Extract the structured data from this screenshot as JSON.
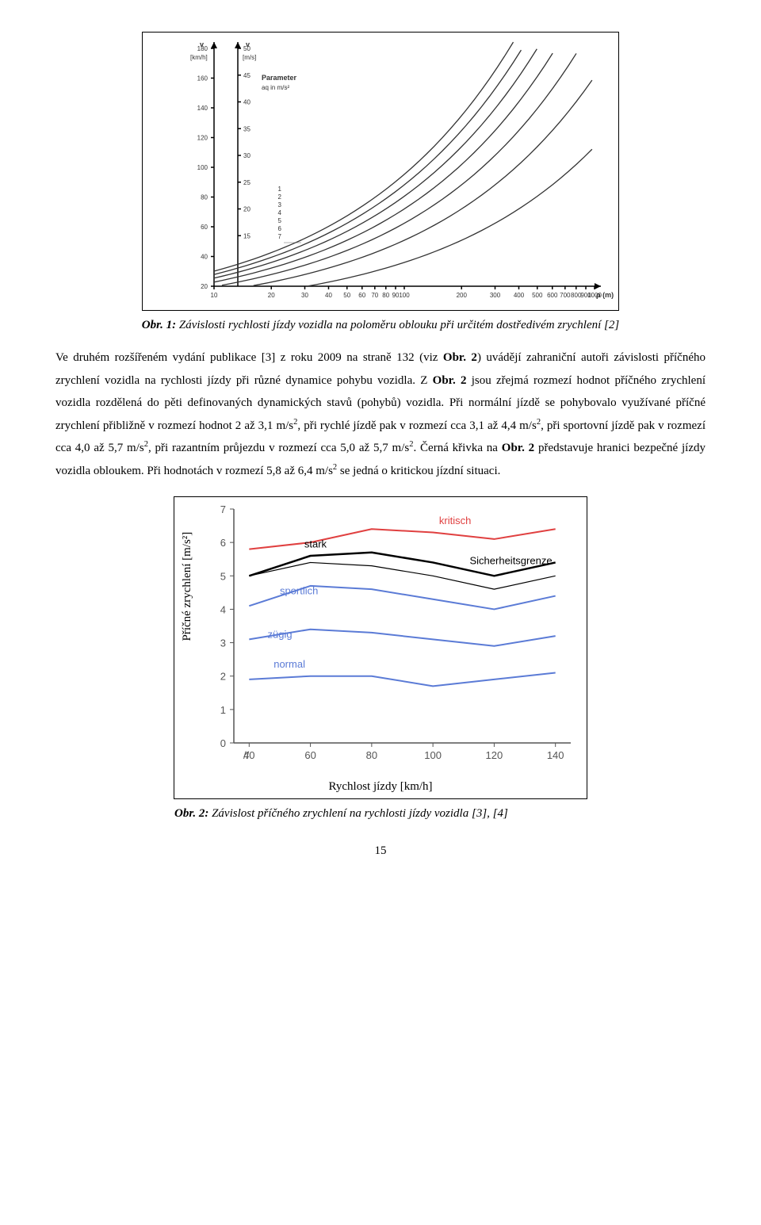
{
  "figure1": {
    "type": "line",
    "border_color": "#000000",
    "background_color": "#ffffff",
    "axis_label_y1": "v",
    "axis_unit_y1": "[km/h]",
    "axis_label_y2": "v",
    "axis_unit_y2": "[m/s]",
    "axis_label_x": "ρ [m]",
    "param_box": [
      "Parameter",
      "aq  in m/s²"
    ],
    "y1_ticks": [
      180,
      160,
      140,
      120,
      100,
      80,
      60,
      40,
      20
    ],
    "y2_ticks": [
      50,
      45,
      40,
      35,
      30,
      25,
      20,
      15
    ],
    "curve_labels": [
      "7",
      "6",
      "5",
      "4",
      "3",
      "2",
      "1"
    ],
    "x_ticks": [
      10,
      20,
      30,
      40,
      50,
      60,
      70,
      80,
      90,
      100,
      200,
      300,
      400,
      500,
      600,
      700,
      800,
      900,
      1000
    ],
    "xscale": "log",
    "line_color": "#333333",
    "axis_color": "#000000",
    "fontsize": 9
  },
  "caption1_prefix": "Obr. 1:",
  "caption1_text": " Závislosti rychlosti jízdy vozidla na poloměru oblouku při určitém dostředivém zrychlení [2]",
  "para": {
    "t1": "Ve druhém rozšířeném vydání publikace [3] z roku 2009 na straně 132 (viz ",
    "b1": "Obr. 2",
    "t2": ") uvádějí zahraniční autoři závislosti příčného zrychlení vozidla na rychlosti jízdy při různé dynamice pohybu vozidla. Z ",
    "b2": "Obr. 2",
    "t3": " jsou zřejmá rozmezí hodnot příčného zrychlení vozidla rozdělená do pěti definovaných dynamických stavů (pohybů) vozidla. Při normální jízdě se pohybovalo využívané příčné zrychlení přibližně v rozmezí hodnot 2 až 3,1 m/s",
    "t4": ", při rychlé jízdě pak v rozmezí cca 3,1 až 4,4 m/s",
    "t5": ", při sportovní jízdě pak v rozmezí cca 4,0 až 5,7 m/s",
    "t6": ", při razantním průjezdu v rozmezí cca 5,0 až 5,7 m/s",
    "t7": ". Černá křivka na ",
    "b3": "Obr. 2",
    "t8": "  představuje hranici bezpečné jízdy vozidla obloukem. Při hodnotách v rozmezí 5,8 až 6,4 m/s",
    "t9": " se jedná o kritickou jízdní situaci.",
    "sup": "2"
  },
  "figure2": {
    "type": "line",
    "background_color": "#ffffff",
    "grid_color": "#888888",
    "axis_color": "#555555",
    "y_label": "Příčné zrychlení [m/s²]",
    "x_label": "Rychlost jízdy [km/h]",
    "y_ticks": [
      0,
      1,
      2,
      3,
      4,
      5,
      6,
      7
    ],
    "x_ticks": [
      40,
      60,
      80,
      100,
      120,
      140
    ],
    "ylim": [
      0,
      7
    ],
    "xlim": [
      35,
      145
    ],
    "tick_fontsize": 13,
    "label_fontsize": 15,
    "series": [
      {
        "name": "kritisch",
        "label": "kritisch",
        "color": "#e04040",
        "width": 2,
        "points": [
          [
            40,
            5.8
          ],
          [
            60,
            6.0
          ],
          [
            80,
            6.4
          ],
          [
            100,
            6.3
          ],
          [
            120,
            6.1
          ],
          [
            140,
            6.4
          ]
        ]
      },
      {
        "name": "stark",
        "label": "stark",
        "color": "#000000",
        "width": 2.5,
        "points": [
          [
            40,
            5.0
          ],
          [
            60,
            5.6
          ],
          [
            80,
            5.7
          ],
          [
            100,
            5.4
          ],
          [
            120,
            5.0
          ],
          [
            140,
            5.4
          ]
        ]
      },
      {
        "name": "sicherheitsgrenze",
        "label": "Sicherheitsgrenze",
        "color": "#000000",
        "width": 1.2,
        "points": [
          [
            40,
            5.0
          ],
          [
            60,
            5.4
          ],
          [
            80,
            5.3
          ],
          [
            100,
            5.0
          ],
          [
            120,
            4.6
          ],
          [
            140,
            5.0
          ]
        ]
      },
      {
        "name": "sportlich",
        "label": "sportlich",
        "color": "#5b7bd6",
        "width": 2,
        "points": [
          [
            40,
            4.1
          ],
          [
            60,
            4.7
          ],
          [
            80,
            4.6
          ],
          [
            100,
            4.3
          ],
          [
            120,
            4.0
          ],
          [
            140,
            4.4
          ]
        ]
      },
      {
        "name": "zuegig",
        "label": "zügig",
        "color": "#5b7bd6",
        "width": 2,
        "points": [
          [
            40,
            3.1
          ],
          [
            60,
            3.4
          ],
          [
            80,
            3.3
          ],
          [
            100,
            3.1
          ],
          [
            120,
            2.9
          ],
          [
            140,
            3.2
          ]
        ]
      },
      {
        "name": "normal",
        "label": "normal",
        "color": "#5b7bd6",
        "width": 2,
        "points": [
          [
            40,
            1.9
          ],
          [
            60,
            2.0
          ],
          [
            80,
            2.0
          ],
          [
            100,
            1.7
          ],
          [
            120,
            1.9
          ],
          [
            140,
            2.1
          ]
        ]
      }
    ],
    "series_label_positions": {
      "kritisch": {
        "x": 102,
        "y": 6.55,
        "color": "#e04040"
      },
      "stark": {
        "x": 58,
        "y": 5.85,
        "color": "#000000"
      },
      "Sicherheitsgrenze": {
        "x": 112,
        "y": 5.35,
        "color": "#000000"
      },
      "sportlich": {
        "x": 50,
        "y": 4.45,
        "color": "#5b7bd6"
      },
      "zügig": {
        "x": 46,
        "y": 3.15,
        "color": "#5b7bd6"
      },
      "normal": {
        "x": 48,
        "y": 2.25,
        "color": "#5b7bd6"
      }
    }
  },
  "caption2_prefix": "Obr. 2:",
  "caption2_text": " Závislost příčného zrychlení na rychlosti jízdy vozidla [3], [4]",
  "page_number": "15"
}
